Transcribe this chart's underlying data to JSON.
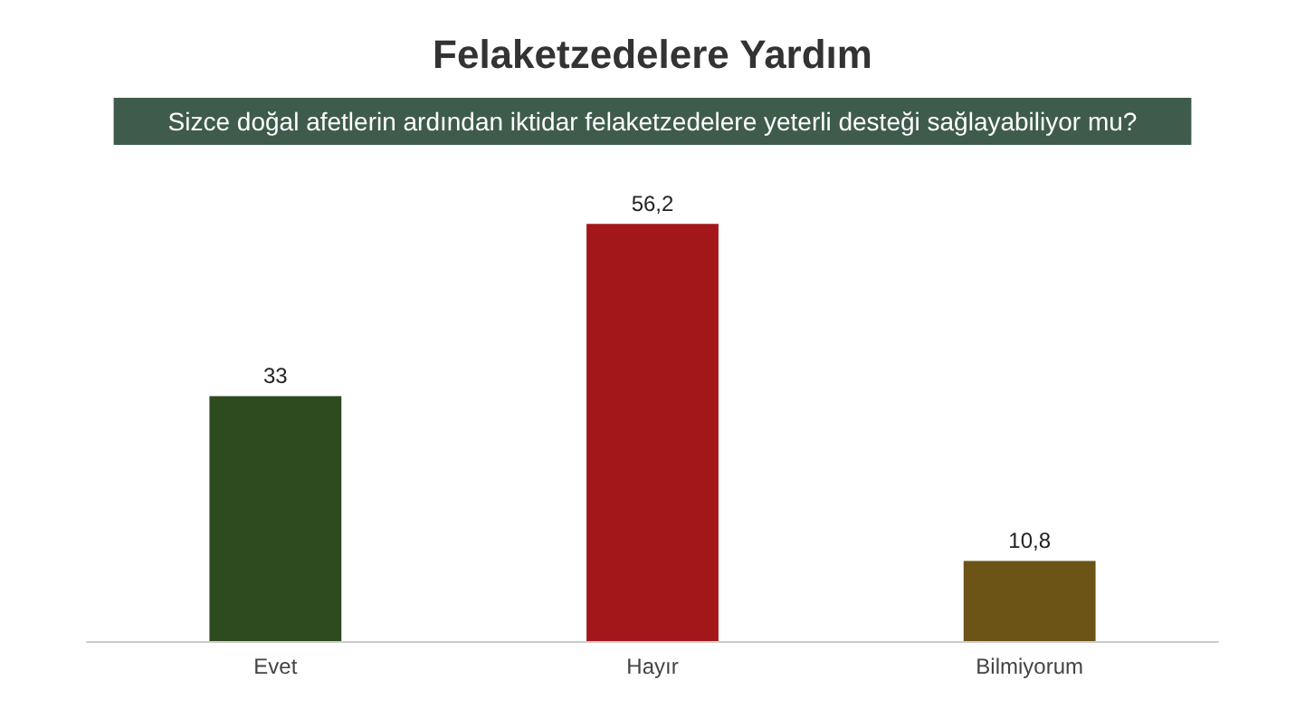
{
  "chart_data": {
    "type": "bar",
    "title": "Felaketzedelere Yardım",
    "subtitle": "Sizce doğal afetlerin ardından iktidar felaketzedelere yeterli desteği sağlayabiliyor mu?",
    "categories": [
      "Evet",
      "Hayır",
      "Bilmiyorum"
    ],
    "values": [
      33,
      56.2,
      10.8
    ],
    "colors": [
      "#2e4a1f",
      "#a3171b",
      "#6b5416"
    ],
    "value_labels": [
      "33",
      "56,2",
      "10,8"
    ],
    "grid": false
  }
}
